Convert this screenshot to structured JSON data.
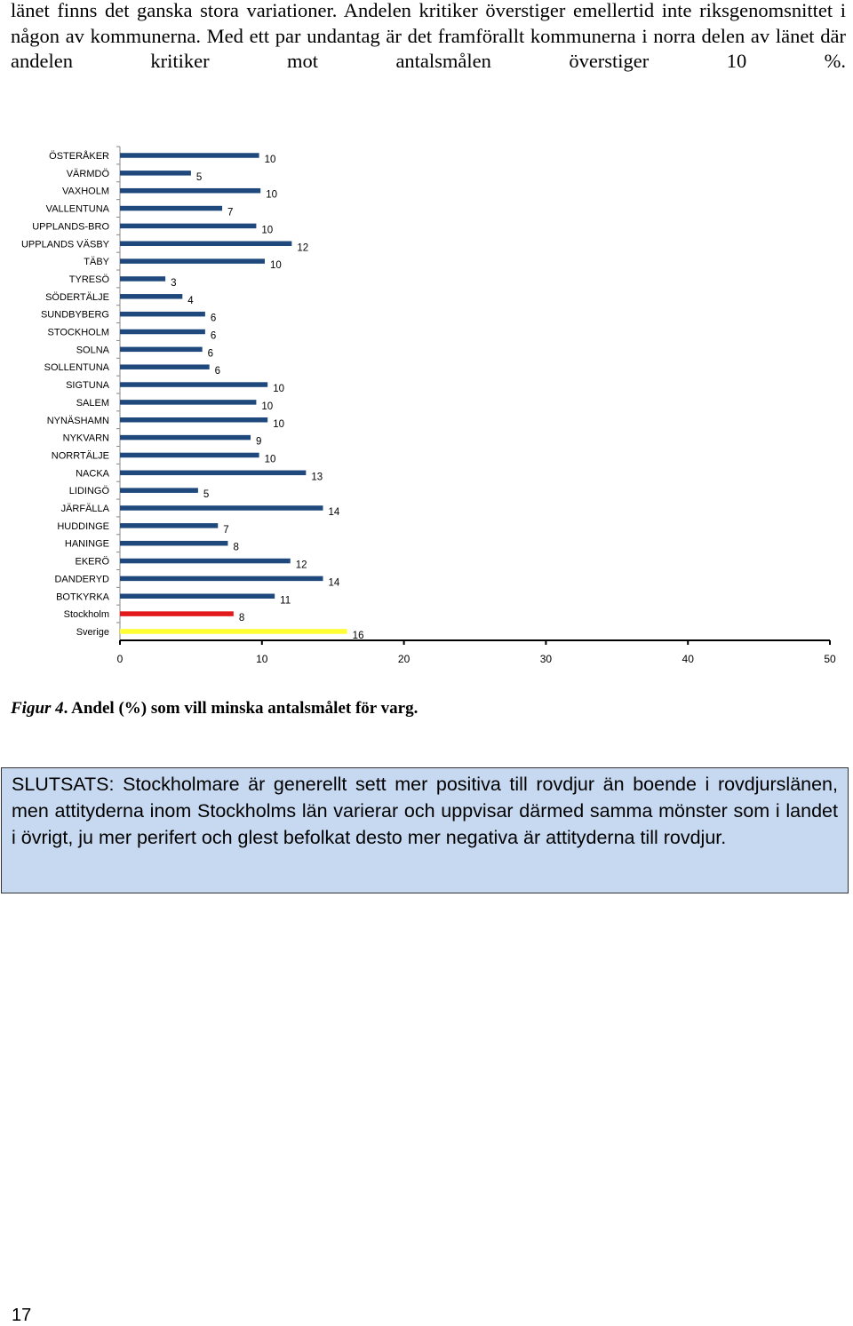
{
  "intro": {
    "text": "länet finns det ganska stora variationer. Andelen kritiker överstiger emellertid inte riksgenomsnittet i någon av kommunerna. Med ett par undantag är det framförallt kommunerna i norra delen av länet där andelen kritiker mot antalsmålen överstiger 10 %."
  },
  "chart_data": {
    "type": "bar",
    "orientation": "horizontal",
    "categories": [
      "ÖSTERÅKER",
      "VÄRMDÖ",
      "VAXHOLM",
      "VALLENTUNA",
      "UPPLANDS-BRO",
      "UPPLANDS VÄSBY",
      "TÄBY",
      "TYRESÖ",
      "SÖDERTÄLJE",
      "SUNDBYBERG",
      "STOCKHOLM",
      "SOLNA",
      "SOLLENTUNA",
      "SIGTUNA",
      "SALEM",
      "NYNÄSHAMN",
      "NYKVARN",
      "NORRTÄLJE",
      "NACKA",
      "LIDINGÖ",
      "JÄRFÄLLA",
      "HUDDINGE",
      "HANINGE",
      "EKERÖ",
      "DANDERYD",
      "BOTKYRKA",
      "Stockholm",
      "Sverige"
    ],
    "values": [
      10,
      5,
      10,
      7,
      10,
      12,
      10,
      3,
      4,
      6,
      6,
      6,
      6,
      10,
      10,
      10,
      9,
      10,
      13,
      5,
      14,
      7,
      8,
      12,
      14,
      11,
      8,
      16
    ],
    "labels": [
      "10",
      "5",
      "10",
      "7",
      "10",
      "12",
      "10",
      "3",
      "4",
      "6",
      "6",
      "6",
      "6",
      "10",
      "10",
      "10",
      "9",
      "10",
      "13",
      "5",
      "14",
      "7",
      "8",
      "12",
      "14",
      "11",
      "8",
      "16"
    ],
    "bar_values": [
      9.8,
      5.0,
      9.9,
      7.2,
      9.6,
      12.1,
      10.2,
      3.2,
      4.4,
      6.0,
      6.0,
      5.8,
      6.3,
      10.4,
      9.6,
      10.4,
      9.2,
      9.8,
      13.1,
      5.5,
      14.3,
      6.9,
      7.6,
      12.0,
      14.3,
      10.9,
      8.0,
      16.0
    ],
    "colors": [
      "#1f497d",
      "#1f497d",
      "#1f497d",
      "#1f497d",
      "#1f497d",
      "#1f497d",
      "#1f497d",
      "#1f497d",
      "#1f497d",
      "#1f497d",
      "#1f497d",
      "#1f497d",
      "#1f497d",
      "#1f497d",
      "#1f497d",
      "#1f497d",
      "#1f497d",
      "#1f497d",
      "#1f497d",
      "#1f497d",
      "#1f497d",
      "#1f497d",
      "#1f497d",
      "#1f497d",
      "#1f497d",
      "#1f497d",
      "#e31a1c",
      "#ffff33"
    ],
    "xlim": [
      0,
      50
    ],
    "xticks": [
      "0",
      "10",
      "20",
      "30",
      "40",
      "50"
    ],
    "grid": false
  },
  "caption": {
    "figure": "Figur 4",
    "text": ". Andel (%) som vill minska antalsmålet för varg."
  },
  "conclusion": {
    "text": "SLUTSATS: Stockholmare är generellt sett mer positiva till rovdjur än boende i rovdjurslänen, men attityderna inom Stockholms län varierar och uppvisar därmed samma mönster som i landet i övrigt, ju mer perifert och glest befolkat desto mer negativa är attityderna till rovdjur."
  },
  "page_number": "17"
}
